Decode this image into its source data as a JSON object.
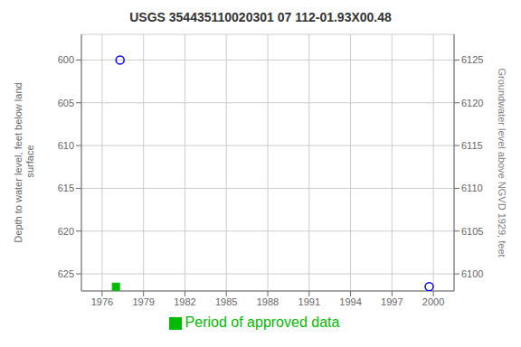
{
  "chart_data": {
    "type": "scatter",
    "title": "USGS 354435110020301 07 112-01.93X00.48",
    "y_label": "Depth to water level, feet below land\n surface",
    "y2_label": "Groundwater level above NGVD 1929, feet",
    "xlim": [
      1974.5,
      2001.5
    ],
    "xticks": [
      1976,
      1979,
      1982,
      1985,
      1988,
      1991,
      1994,
      1997,
      2000
    ],
    "ylim": [
      627,
      597
    ],
    "yticks": [
      600,
      605,
      610,
      615,
      620,
      625
    ],
    "y2lim": [
      6098,
      6128
    ],
    "y2ticks": [
      6100,
      6105,
      6110,
      6115,
      6120,
      6125
    ],
    "grid": true,
    "legend": "bottom",
    "series": [
      {
        "color": "blue",
        "marker": "circle",
        "x": [
          1977.3,
          1999.7
        ],
        "values": [
          600.0,
          626.5
        ]
      },
      {
        "name": "Period of approved data",
        "color": "#00bb00",
        "marker": "square",
        "x": [
          1977.0
        ],
        "values": [
          626.5
        ]
      }
    ]
  }
}
